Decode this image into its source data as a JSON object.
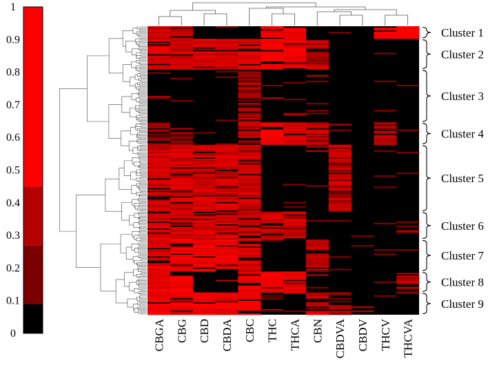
{
  "chart_data": {
    "type": "heatmap",
    "title": "",
    "xlabel": "",
    "ylabel": "",
    "columns": [
      "CBGA",
      "CBG",
      "CBD",
      "CBDA",
      "CBC",
      "THC",
      "THCA",
      "CBN",
      "CBDVA",
      "CBDV",
      "THCV",
      "THCVA"
    ],
    "colorbar": {
      "range": [
        0,
        1
      ],
      "ticks": [
        "0",
        "0.1",
        "0.2",
        "0.3",
        "0.4",
        "0.5",
        "0.6",
        "0.7",
        "0.8",
        "0.9",
        "1"
      ],
      "levels": [
        "#000000",
        "#7a0000",
        "#b50000",
        "#d40000",
        "#e60000",
        "#f20000",
        "#ff0000"
      ]
    },
    "clusters": [
      {
        "label": "Cluster 1",
        "rows": 9,
        "values": [
          0.45,
          0.4,
          0.05,
          0.05,
          0.1,
          0.85,
          0.85,
          0.1,
          0.05,
          0.0,
          0.9,
          0.95
        ]
      },
      {
        "label": "Cluster 2",
        "rows": 22,
        "values": [
          0.6,
          0.5,
          0.6,
          0.55,
          0.6,
          0.8,
          0.75,
          0.4,
          0.1,
          0.0,
          0.05,
          0.0
        ]
      },
      {
        "label": "Cluster 3",
        "rows": 38,
        "values": [
          0.05,
          0.05,
          0.1,
          0.05,
          0.3,
          0.1,
          0.05,
          0.05,
          0.05,
          0.0,
          0.05,
          0.05
        ]
      },
      {
        "label": "Cluster 4",
        "rows": 16,
        "values": [
          0.15,
          0.15,
          0.05,
          0.05,
          0.35,
          0.85,
          0.55,
          0.4,
          0.05,
          0.0,
          0.3,
          0.0
        ]
      },
      {
        "label": "Cluster 5",
        "rows": 48,
        "values": [
          0.5,
          0.55,
          0.55,
          0.55,
          0.5,
          0.0,
          0.0,
          0.1,
          0.4,
          0.05,
          0.0,
          0.0
        ]
      },
      {
        "label": "Cluster 6",
        "rows": 20,
        "values": [
          0.55,
          0.55,
          0.55,
          0.55,
          0.45,
          0.5,
          0.45,
          0.1,
          0.05,
          0.0,
          0.05,
          0.05
        ]
      },
      {
        "label": "Cluster 7",
        "rows": 23,
        "values": [
          0.65,
          0.75,
          0.8,
          0.85,
          0.6,
          0.0,
          0.0,
          0.35,
          0.1,
          0.0,
          0.1,
          0.05
        ]
      },
      {
        "label": "Cluster 8",
        "rows": 15,
        "values": [
          0.7,
          0.85,
          0.05,
          0.05,
          0.75,
          0.85,
          0.75,
          0.1,
          0.05,
          0.0,
          0.1,
          0.3
        ]
      },
      {
        "label": "Cluster 9",
        "rows": 16,
        "values": [
          0.8,
          0.75,
          0.85,
          0.8,
          0.85,
          0.1,
          0.05,
          0.45,
          0.15,
          0.1,
          0.05,
          0.05
        ]
      }
    ]
  }
}
